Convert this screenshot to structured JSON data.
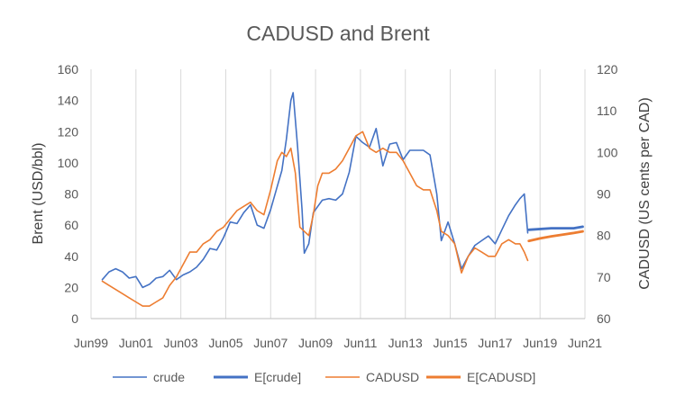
{
  "chart_data": {
    "type": "line",
    "title": "CADUSD and Brent",
    "y_left_label": "Brent (USD/bbl)",
    "y_right_label": "CADUSD (US cents per CAD)",
    "x_ticks": [
      "Jun99",
      "Jun01",
      "Jun03",
      "Jun05",
      "Jun07",
      "Jun09",
      "Jun11",
      "Jun13",
      "Jun15",
      "Jun17",
      "Jun19",
      "Jun21"
    ],
    "y_left_ticks": [
      "0",
      "20",
      "40",
      "60",
      "80",
      "100",
      "120",
      "140",
      "160"
    ],
    "y_right_ticks": [
      "60",
      "70",
      "80",
      "90",
      "100",
      "110",
      "120"
    ],
    "ylim_left": [
      0,
      160
    ],
    "ylim_right": [
      60,
      120
    ],
    "xlim": [
      1999.5,
      2021.5
    ],
    "grid": "vertical",
    "legend_position": "bottom",
    "colors": {
      "crude": "#4472C4",
      "cadusd": "#ED7D31"
    },
    "legend": [
      {
        "name": "crude",
        "color": "#4472C4",
        "width": 1
      },
      {
        "name": "E[crude]",
        "color": "#4472C4",
        "width": 3
      },
      {
        "name": "CADUSD",
        "color": "#ED7D31",
        "width": 1
      },
      {
        "name": "E[CADUSD]",
        "color": "#ED7D31",
        "width": 3
      }
    ],
    "series": [
      {
        "name": "crude",
        "axis": "left",
        "x": [
          2000.0,
          2000.3,
          2000.6,
          2000.9,
          2001.2,
          2001.5,
          2001.8,
          2002.1,
          2002.4,
          2002.7,
          2003.0,
          2003.3,
          2003.6,
          2003.9,
          2004.2,
          2004.5,
          2004.8,
          2005.1,
          2005.4,
          2005.7,
          2006.0,
          2006.3,
          2006.6,
          2006.9,
          2007.2,
          2007.5,
          2007.8,
          2008.0,
          2008.2,
          2008.4,
          2008.5,
          2008.7,
          2008.9,
          2009.0,
          2009.2,
          2009.4,
          2009.6,
          2009.8,
          2010.1,
          2010.4,
          2010.7,
          2011.0,
          2011.3,
          2011.6,
          2011.9,
          2012.2,
          2012.5,
          2012.8,
          2013.1,
          2013.4,
          2013.7,
          2014.0,
          2014.3,
          2014.6,
          2014.9,
          2015.1,
          2015.4,
          2015.7,
          2016.0,
          2016.3,
          2016.6,
          2016.9,
          2017.2,
          2017.5,
          2017.8,
          2018.1,
          2018.4,
          2018.6,
          2018.8,
          2018.95
        ],
        "y": [
          25,
          30,
          32,
          30,
          26,
          27,
          20,
          22,
          26,
          27,
          31,
          25,
          28,
          30,
          33,
          38,
          45,
          44,
          52,
          62,
          61,
          68,
          73,
          60,
          58,
          70,
          85,
          95,
          115,
          140,
          145,
          110,
          70,
          42,
          48,
          68,
          72,
          76,
          77,
          76,
          80,
          94,
          117,
          113,
          110,
          122,
          98,
          112,
          113,
          102,
          108,
          108,
          108,
          105,
          80,
          50,
          62,
          48,
          32,
          40,
          47,
          50,
          53,
          48,
          57,
          66,
          73,
          77,
          80,
          55
        ]
      },
      {
        "name": "E[crude]",
        "axis": "left",
        "x": [
          2019.0,
          2020.0,
          2021.0,
          2021.4
        ],
        "y": [
          57,
          58,
          58,
          59
        ]
      },
      {
        "name": "CADUSD",
        "axis": "right",
        "x": [
          2000.0,
          2000.3,
          2000.6,
          2000.9,
          2001.2,
          2001.5,
          2001.8,
          2002.1,
          2002.4,
          2002.7,
          2003.0,
          2003.3,
          2003.6,
          2003.9,
          2004.2,
          2004.5,
          2004.8,
          2005.1,
          2005.4,
          2005.7,
          2006.0,
          2006.3,
          2006.6,
          2006.9,
          2007.2,
          2007.5,
          2007.8,
          2008.0,
          2008.2,
          2008.4,
          2008.6,
          2008.8,
          2009.0,
          2009.2,
          2009.4,
          2009.6,
          2009.8,
          2010.1,
          2010.4,
          2010.7,
          2011.0,
          2011.3,
          2011.6,
          2011.9,
          2012.2,
          2012.5,
          2012.8,
          2013.1,
          2013.4,
          2013.7,
          2014.0,
          2014.3,
          2014.6,
          2014.9,
          2015.1,
          2015.4,
          2015.7,
          2016.0,
          2016.3,
          2016.6,
          2016.9,
          2017.2,
          2017.5,
          2017.8,
          2018.1,
          2018.4,
          2018.6,
          2018.8,
          2018.95
        ],
        "y": [
          69,
          68,
          67,
          66,
          65,
          64,
          63,
          63,
          64,
          65,
          68,
          70,
          73,
          76,
          76,
          78,
          79,
          81,
          82,
          84,
          86,
          87,
          88,
          86,
          85,
          91,
          98,
          100,
          99,
          101,
          95,
          82,
          81,
          80,
          85,
          92,
          95,
          95,
          96,
          98,
          101,
          104,
          105,
          101,
          100,
          101,
          100,
          100,
          98,
          95,
          92,
          91,
          91,
          86,
          81,
          80,
          78,
          71,
          75,
          77,
          76,
          75,
          75,
          78,
          79,
          78,
          78,
          76,
          74
        ]
      },
      {
        "name": "E[CADUSD]",
        "axis": "right",
        "x": [
          2019.0,
          2019.5,
          2020.0,
          2020.5,
          2021.0,
          2021.4
        ],
        "y": [
          78.7,
          79.3,
          79.8,
          80.2,
          80.6,
          81.0
        ]
      }
    ]
  }
}
